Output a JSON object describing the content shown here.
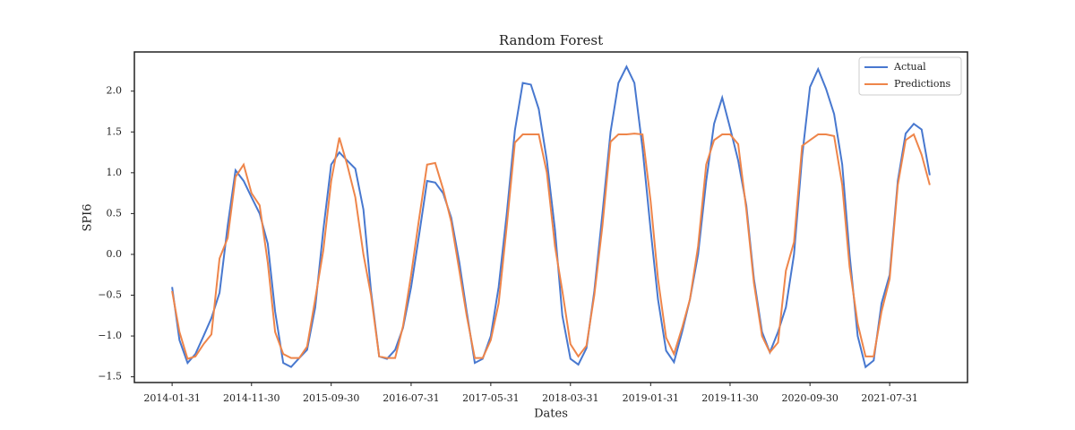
{
  "chart_data": {
    "type": "line",
    "title": "Random Forest",
    "x_label": "Dates",
    "y_label": "SPI6",
    "x": [
      "2014-01-31",
      "2014-02-28",
      "2014-03-31",
      "2014-04-30",
      "2014-05-31",
      "2014-06-30",
      "2014-07-31",
      "2014-08-31",
      "2014-09-30",
      "2014-10-31",
      "2014-11-30",
      "2014-12-31",
      "2015-01-31",
      "2015-02-28",
      "2015-03-31",
      "2015-04-30",
      "2015-05-31",
      "2015-06-30",
      "2015-07-31",
      "2015-08-31",
      "2015-09-30",
      "2015-10-31",
      "2015-11-30",
      "2015-12-31",
      "2016-01-31",
      "2016-02-29",
      "2016-03-31",
      "2016-04-30",
      "2016-05-31",
      "2016-06-30",
      "2016-07-31",
      "2016-08-31",
      "2016-09-30",
      "2016-10-31",
      "2016-11-30",
      "2016-12-31",
      "2017-01-31",
      "2017-02-28",
      "2017-03-31",
      "2017-04-30",
      "2017-05-31",
      "2017-06-30",
      "2017-07-31",
      "2017-08-31",
      "2017-09-30",
      "2017-10-31",
      "2017-11-30",
      "2017-12-31",
      "2018-01-31",
      "2018-02-28",
      "2018-03-31",
      "2018-04-30",
      "2018-05-31",
      "2018-06-30",
      "2018-07-31",
      "2018-08-31",
      "2018-09-30",
      "2018-10-31",
      "2018-11-30",
      "2018-12-31",
      "2019-01-31",
      "2019-02-28",
      "2019-03-31",
      "2019-04-30",
      "2019-05-31",
      "2019-06-30",
      "2019-07-31",
      "2019-08-31",
      "2019-09-30",
      "2019-10-31",
      "2019-11-30",
      "2019-12-31",
      "2020-01-31",
      "2020-02-29",
      "2020-03-31",
      "2020-04-30",
      "2020-05-31",
      "2020-06-30",
      "2020-07-31",
      "2020-08-31",
      "2020-09-30",
      "2020-10-31",
      "2020-11-30",
      "2020-12-31",
      "2021-01-31",
      "2021-02-28",
      "2021-03-31",
      "2021-04-30",
      "2021-05-31",
      "2021-06-30",
      "2021-07-31",
      "2021-08-31",
      "2021-09-30",
      "2021-10-31",
      "2021-11-30",
      "2021-12-31"
    ],
    "series": [
      {
        "name": "Actual",
        "color": "#4878cf",
        "values": [
          -0.4,
          -1.05,
          -1.33,
          -1.22,
          -1.0,
          -0.78,
          -0.47,
          0.35,
          1.03,
          0.9,
          0.7,
          0.5,
          0.13,
          -0.7,
          -1.33,
          -1.38,
          -1.27,
          -1.17,
          -0.65,
          0.3,
          1.1,
          1.25,
          1.15,
          1.05,
          0.55,
          -0.45,
          -1.25,
          -1.28,
          -1.17,
          -0.9,
          -0.4,
          0.25,
          0.9,
          0.88,
          0.75,
          0.45,
          -0.1,
          -0.7,
          -1.33,
          -1.28,
          -1.0,
          -0.4,
          0.5,
          1.52,
          2.1,
          2.08,
          1.78,
          1.15,
          0.3,
          -0.75,
          -1.28,
          -1.35,
          -1.15,
          -0.45,
          0.5,
          1.5,
          2.1,
          2.3,
          2.1,
          1.3,
          0.3,
          -0.55,
          -1.18,
          -1.32,
          -0.95,
          -0.55,
          0.0,
          0.9,
          1.6,
          1.92,
          1.55,
          1.15,
          0.6,
          -0.3,
          -0.95,
          -1.2,
          -0.95,
          -0.65,
          0.0,
          1.2,
          2.05,
          2.27,
          2.03,
          1.72,
          1.1,
          0.0,
          -1.0,
          -1.38,
          -1.3,
          -0.6,
          -0.25,
          0.9,
          1.48,
          1.6,
          1.53,
          0.97
        ]
      },
      {
        "name": "Predictions",
        "color": "#ee854a",
        "values": [
          -0.45,
          -0.95,
          -1.28,
          -1.25,
          -1.1,
          -0.98,
          -0.05,
          0.2,
          0.95,
          1.1,
          0.75,
          0.6,
          -0.1,
          -0.95,
          -1.22,
          -1.27,
          -1.27,
          -1.13,
          -0.55,
          0.05,
          0.9,
          1.43,
          1.1,
          0.7,
          0.0,
          -0.5,
          -1.25,
          -1.27,
          -1.27,
          -0.88,
          -0.25,
          0.45,
          1.1,
          1.12,
          0.8,
          0.4,
          -0.2,
          -0.75,
          -1.27,
          -1.27,
          -1.05,
          -0.6,
          0.35,
          1.37,
          1.47,
          1.47,
          1.47,
          1.0,
          0.1,
          -0.45,
          -1.1,
          -1.25,
          -1.12,
          -0.5,
          0.35,
          1.38,
          1.47,
          1.47,
          1.48,
          1.47,
          0.65,
          -0.3,
          -1.02,
          -1.22,
          -0.9,
          -0.55,
          0.1,
          1.1,
          1.4,
          1.47,
          1.47,
          1.35,
          0.55,
          -0.35,
          -1.0,
          -1.2,
          -1.08,
          -0.2,
          0.15,
          1.33,
          1.4,
          1.47,
          1.47,
          1.45,
          0.85,
          -0.15,
          -0.85,
          -1.25,
          -1.25,
          -0.7,
          -0.3,
          0.85,
          1.4,
          1.47,
          1.22,
          0.85
        ]
      }
    ],
    "xlim": [
      "2013-09-09",
      "2022-05-24"
    ],
    "xticks": [
      "2014-01-31",
      "2014-11-30",
      "2015-09-30",
      "2016-07-31",
      "2017-05-31",
      "2018-03-31",
      "2019-01-31",
      "2019-11-30",
      "2020-09-30",
      "2021-07-31"
    ],
    "ylim": [
      -1.57,
      2.48
    ],
    "yticks": [
      {
        "value": -1.5,
        "label": "−1.5"
      },
      {
        "value": -1.0,
        "label": "−1.0"
      },
      {
        "value": -0.5,
        "label": "−0.5"
      },
      {
        "value": 0,
        "label": "0.0"
      },
      {
        "value": 0.5,
        "label": "0.5"
      },
      {
        "value": 1.0,
        "label": "1.0"
      },
      {
        "value": 1.5,
        "label": "1.5"
      },
      {
        "value": 2.0,
        "label": "2.0"
      }
    ],
    "grid": false,
    "legend": "upper right"
  }
}
